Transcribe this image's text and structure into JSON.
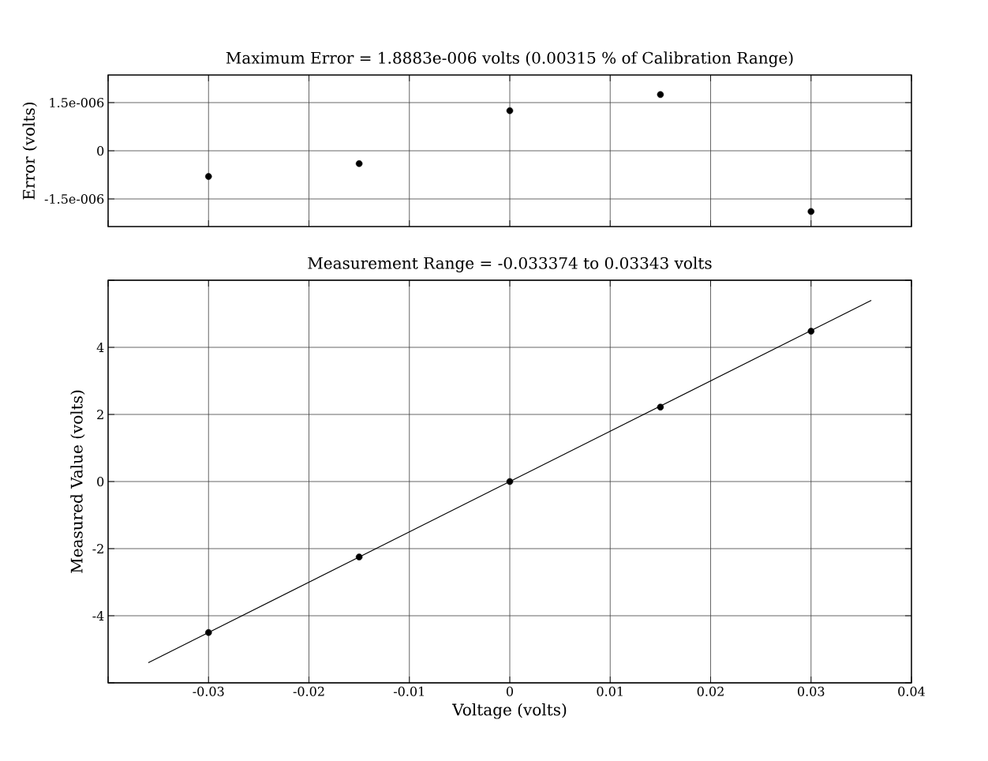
{
  "chart_data": [
    {
      "type": "scatter",
      "title": "Maximum Error = 1.8883e-006 volts   (0.00315 % of Calibration Range)",
      "ylabel": "Error (volts)",
      "x": [
        -0.03,
        -0.015,
        0,
        0.015,
        0.03
      ],
      "series": [
        {
          "color": "#000000",
          "values": [
            -8e-07,
            -4e-07,
            1.25e-06,
            1.75e-06,
            -1.89e-06
          ]
        }
      ],
      "xlim": [
        -0.04,
        0.04
      ],
      "xticks": [
        -0.04,
        -0.03,
        -0.02,
        -0.01,
        0,
        0.01,
        0.02,
        0.03,
        0.04
      ],
      "ylim": [
        -2.36e-06,
        2.36e-06
      ],
      "yticks": [
        {
          "value": -1.5e-06,
          "label": "-1.5e-006"
        },
        {
          "value": 0,
          "label": "0"
        },
        {
          "value": 1.5e-06,
          "label": "1.5e-006"
        }
      ],
      "grid": true,
      "tick_labels": "y",
      "marker": "circle"
    },
    {
      "type": "scatter",
      "title": "Measurement Range = -0.033374 to 0.03343 volts",
      "xlabel": "Voltage (volts)",
      "ylabel": "Measured Value (volts)",
      "x": [
        -0.03,
        -0.015,
        0,
        0.015,
        0.03
      ],
      "series": [
        {
          "color": "#000000",
          "marker": "circle",
          "values": [
            -4.5,
            -2.25,
            0,
            2.22,
            4.48
          ]
        },
        {
          "type": "line",
          "color": "#000000",
          "marker": "none",
          "x": [
            -0.036,
            0.036
          ],
          "values": [
            -5.4,
            5.4
          ]
        }
      ],
      "xlim": [
        -0.04,
        0.04
      ],
      "xticks": [
        {
          "value": -0.04,
          "label": null
        },
        -0.03,
        -0.02,
        -0.01,
        0,
        0.01,
        0.02,
        0.03,
        0.04
      ],
      "ylim": [
        -6,
        6
      ],
      "yticks": [
        {
          "value": -6,
          "label": null
        },
        -4,
        -2,
        0,
        2,
        4,
        {
          "value": 6,
          "label": null
        }
      ],
      "grid": true
    }
  ]
}
